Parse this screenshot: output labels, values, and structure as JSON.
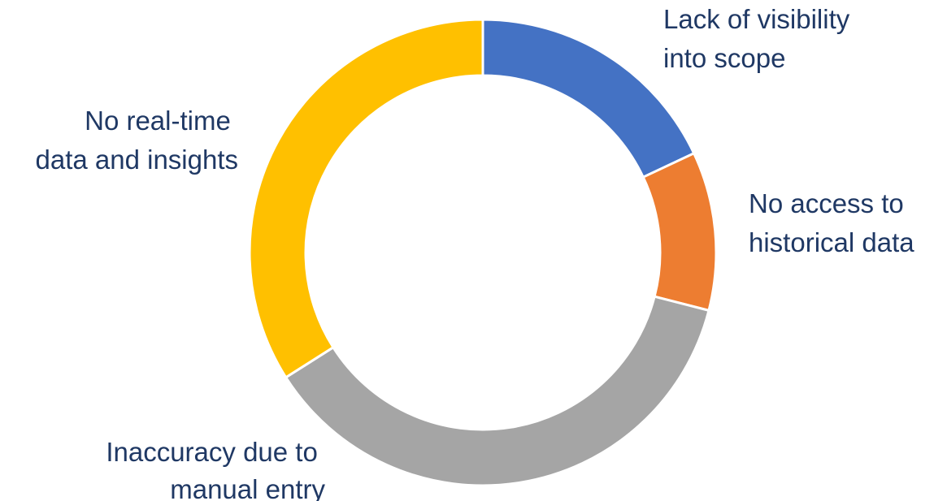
{
  "chart_data": {
    "type": "pie",
    "variant": "doughnut",
    "start_angle_deg": 0,
    "direction": "clockwise",
    "label_color": "#1f3864",
    "segments": [
      {
        "label": [
          "Lack of visibility",
          "into scope"
        ],
        "value": 18,
        "color": "#4472c4"
      },
      {
        "label": [
          "No access to",
          "historical data"
        ],
        "value": 11,
        "color": "#ed7d31"
      },
      {
        "label": [
          "Inaccuracy due to",
          "manual entry"
        ],
        "value": 37,
        "color": "#a5a5a5"
      },
      {
        "label": [
          "No real-time",
          "data and insights"
        ],
        "value": 34,
        "color": "#ffc000"
      }
    ]
  }
}
